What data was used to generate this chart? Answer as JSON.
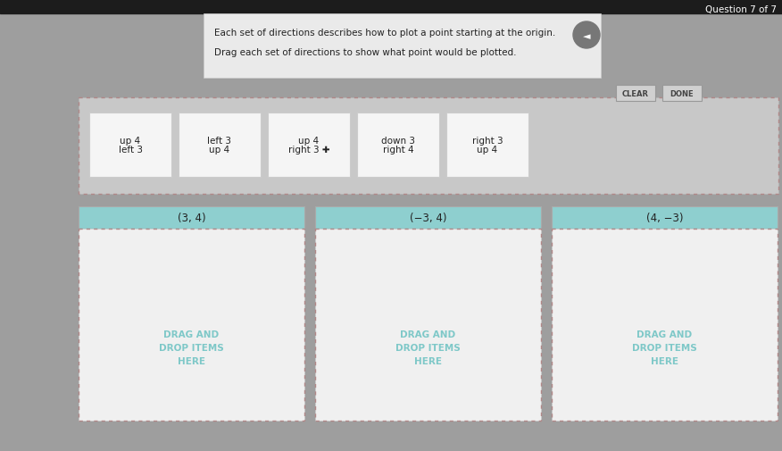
{
  "bg_color": "#9e9e9e",
  "top_bar_color": "#1a1a1a",
  "title_box_color": "#e8e8e8",
  "title_text1": "Each set of directions describes how to plot a point starting at the origin.",
  "title_text2": "Drag each set of directions to show what point would be plotted.",
  "question_label": "Question 7 of 7",
  "clear_btn": "CLEAR",
  "done_btn": "DONE",
  "cards": [
    {
      "lines": [
        "up 4",
        "left 3"
      ]
    },
    {
      "lines": [
        "left 3",
        "up 4"
      ]
    },
    {
      "lines": [
        "up 4",
        "right 3 ✚"
      ]
    },
    {
      "lines": [
        "down 3",
        "right 4"
      ]
    },
    {
      "lines": [
        "right 3",
        "up 4"
      ]
    }
  ],
  "card_bg": "#f5f5f5",
  "card_border": "#cccccc",
  "drop_zones": [
    {
      "label": "(3, 4)"
    },
    {
      "label": "(−3, 4)"
    },
    {
      "label": "(4, −3)"
    }
  ],
  "drop_header_color": "#8ecfcf",
  "drop_body_color": "#f0f0f0",
  "drop_text": "DRAG AND\nDROP ITEMS\nHERE",
  "drop_text_color": "#7ec8c8",
  "audio_icon_bg": "#888888"
}
